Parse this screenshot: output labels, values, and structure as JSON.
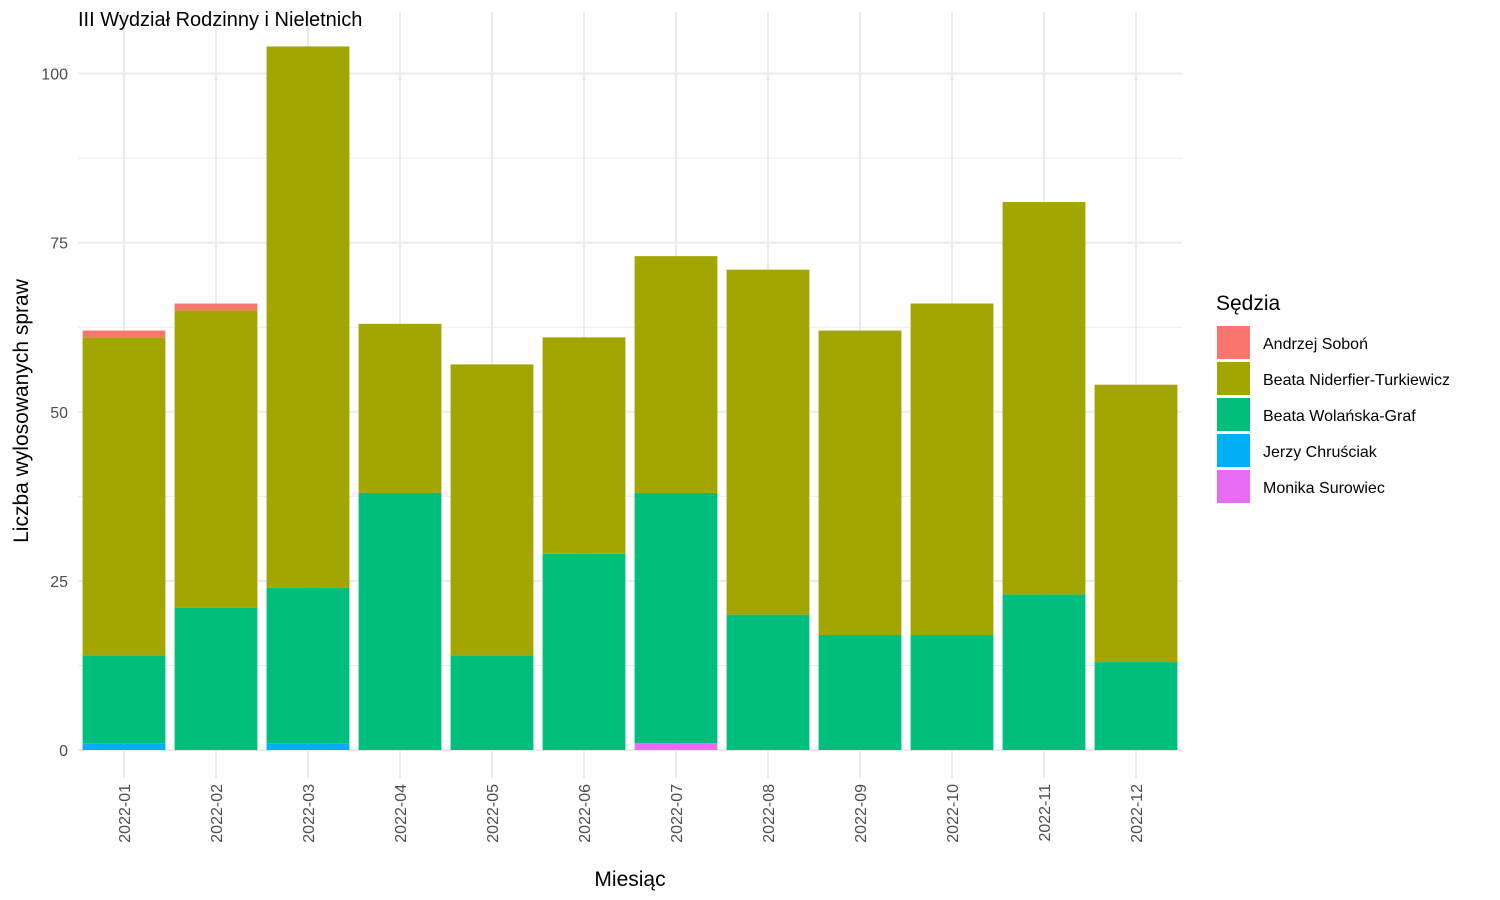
{
  "chart_data": {
    "type": "bar",
    "stacked": true,
    "title": "III Wydział Rodzinny i Nieletnich",
    "xlabel": "Miesiąc",
    "ylabel": "Liczba wylosowanych spraw",
    "ylim": [
      0,
      105
    ],
    "yticks": [
      0,
      25,
      50,
      75,
      100
    ],
    "grid": true,
    "legend": {
      "title": "Sędzia",
      "position": "right"
    },
    "categories": [
      "2022-01",
      "2022-02",
      "2022-03",
      "2022-04",
      "2022-05",
      "2022-06",
      "2022-07",
      "2022-08",
      "2022-09",
      "2022-10",
      "2022-11",
      "2022-12"
    ],
    "series": [
      {
        "name": "Andrzej Soboń",
        "color": "#F8766D",
        "values": [
          1,
          1,
          0,
          0,
          0,
          0,
          0,
          0,
          0,
          0,
          0,
          0
        ]
      },
      {
        "name": "Beata Niderfier-Turkiewicz",
        "color": "#A3A500",
        "values": [
          47,
          44,
          80,
          25,
          43,
          32,
          35,
          51,
          45,
          49,
          58,
          41
        ]
      },
      {
        "name": "Beata Wolańska-Graf",
        "color": "#00BF7D",
        "values": [
          13,
          21,
          23,
          38,
          14,
          29,
          37,
          20,
          17,
          17,
          23,
          13
        ]
      },
      {
        "name": "Jerzy Chruściak",
        "color": "#00B0F6",
        "values": [
          1,
          0,
          1,
          0,
          0,
          0,
          0,
          0,
          0,
          0,
          0,
          0
        ]
      },
      {
        "name": "Monika Surowiec",
        "color": "#E76BF3",
        "values": [
          0,
          0,
          0,
          0,
          0,
          0,
          1,
          0,
          0,
          0,
          0,
          0
        ]
      }
    ]
  }
}
